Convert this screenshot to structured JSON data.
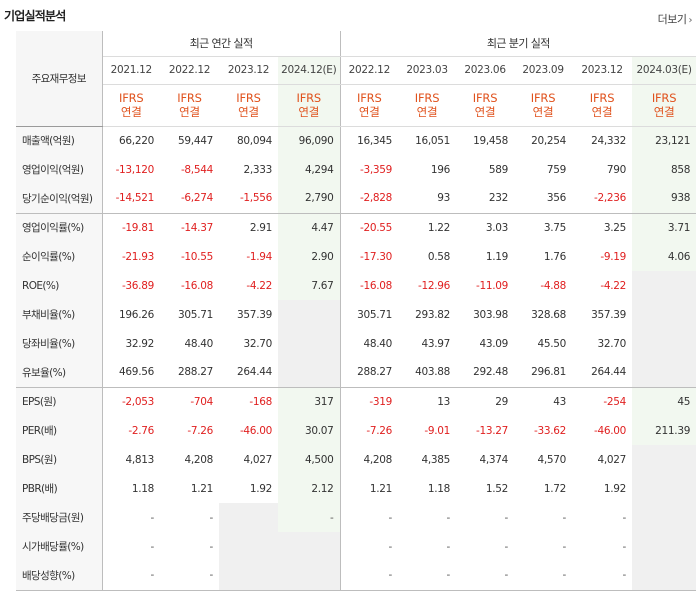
{
  "header": {
    "title": "기업실적분석",
    "more_label": "더보기"
  },
  "table": {
    "corner_label": "주요재무정보",
    "group_annual": "최근 연간 실적",
    "group_quarter": "최근 분기 실적",
    "columns": [
      "2021.12",
      "2022.12",
      "2023.12",
      "2024.12(E)",
      "2022.12",
      "2023.03",
      "2023.06",
      "2023.09",
      "2023.12",
      "2024.03(E)"
    ],
    "ifrs_top": "IFRS",
    "ifrs_bottom": "연결",
    "rows": [
      {
        "label": "매출액(억원)",
        "values": [
          "66,220",
          "59,447",
          "80,094",
          "96,090",
          "16,345",
          "16,051",
          "19,458",
          "20,254",
          "24,332",
          "23,121"
        ]
      },
      {
        "label": "영업이익(억원)",
        "values": [
          "-13,120",
          "-8,544",
          "2,333",
          "4,294",
          "-3,359",
          "196",
          "589",
          "759",
          "790",
          "858"
        ]
      },
      {
        "label": "당기순이익(억원)",
        "values": [
          "-14,521",
          "-6,274",
          "-1,556",
          "2,790",
          "-2,828",
          "93",
          "232",
          "356",
          "-2,236",
          "938"
        ]
      },
      {
        "label": "영업이익률(%)",
        "values": [
          "-19.81",
          "-14.37",
          "2.91",
          "4.47",
          "-20.55",
          "1.22",
          "3.03",
          "3.75",
          "3.25",
          "3.71"
        ]
      },
      {
        "label": "순이익률(%)",
        "values": [
          "-21.93",
          "-10.55",
          "-1.94",
          "2.90",
          "-17.30",
          "0.58",
          "1.19",
          "1.76",
          "-9.19",
          "4.06"
        ]
      },
      {
        "label": "ROE(%)",
        "values": [
          "-36.89",
          "-16.08",
          "-4.22",
          "7.67",
          "-16.08",
          "-12.96",
          "-11.09",
          "-4.88",
          "-4.22",
          ""
        ]
      },
      {
        "label": "부채비율(%)",
        "values": [
          "196.26",
          "305.71",
          "357.39",
          "",
          "305.71",
          "293.82",
          "303.98",
          "328.68",
          "357.39",
          ""
        ]
      },
      {
        "label": "당좌비율(%)",
        "values": [
          "32.92",
          "48.40",
          "32.70",
          "",
          "48.40",
          "43.97",
          "43.09",
          "45.50",
          "32.70",
          ""
        ]
      },
      {
        "label": "유보율(%)",
        "values": [
          "469.56",
          "288.27",
          "264.44",
          "",
          "288.27",
          "403.88",
          "292.48",
          "296.81",
          "264.44",
          ""
        ]
      },
      {
        "label": "EPS(원)",
        "values": [
          "-2,053",
          "-704",
          "-168",
          "317",
          "-319",
          "13",
          "29",
          "43",
          "-254",
          "45"
        ]
      },
      {
        "label": "PER(배)",
        "values": [
          "-2.76",
          "-7.26",
          "-46.00",
          "30.07",
          "-7.26",
          "-9.01",
          "-13.27",
          "-33.62",
          "-46.00",
          "211.39"
        ]
      },
      {
        "label": "BPS(원)",
        "values": [
          "4,813",
          "4,208",
          "4,027",
          "4,500",
          "4,208",
          "4,385",
          "4,374",
          "4,570",
          "4,027",
          ""
        ]
      },
      {
        "label": "PBR(배)",
        "values": [
          "1.18",
          "1.21",
          "1.92",
          "2.12",
          "1.21",
          "1.18",
          "1.52",
          "1.72",
          "1.92",
          ""
        ]
      },
      {
        "label": "주당배당금(원)",
        "values": [
          "-",
          "-",
          "",
          "-",
          "-",
          "-",
          "-",
          "-",
          "-",
          ""
        ]
      },
      {
        "label": "시가배당률(%)",
        "values": [
          "-",
          "-",
          "",
          "",
          "-",
          "-",
          "-",
          "-",
          "-",
          ""
        ]
      },
      {
        "label": "배당성향(%)",
        "values": [
          "-",
          "-",
          "",
          "",
          "-",
          "-",
          "-",
          "-",
          "-",
          ""
        ]
      }
    ]
  },
  "colors": {
    "negative": "#e02020",
    "ifrs": "#e0521d",
    "estimate_bg": "#f2f8f0"
  }
}
